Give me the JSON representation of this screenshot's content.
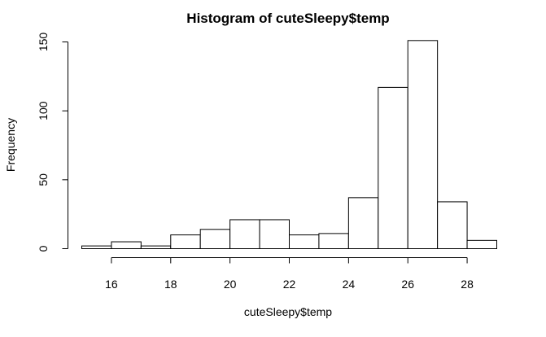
{
  "chart_data": {
    "type": "bar",
    "title": "Histogram of cuteSleepy$temp",
    "xlabel": "cuteSleepy$temp",
    "ylabel": "Frequency",
    "bin_edges": [
      15,
      16,
      17,
      18,
      19,
      20,
      21,
      22,
      23,
      24,
      25,
      26,
      27,
      28,
      29
    ],
    "values": [
      2,
      5,
      2,
      10,
      14,
      21,
      21,
      10,
      11,
      37,
      117,
      151,
      34,
      6
    ],
    "xlim": [
      15,
      29
    ],
    "ylim": [
      0,
      150
    ],
    "x_ticks": [
      16,
      18,
      20,
      22,
      24,
      26,
      28
    ],
    "y_ticks": [
      0,
      50,
      100,
      150
    ],
    "bar_fill": "#ffffff",
    "bar_stroke": "#000000",
    "grid": false,
    "legend": "none"
  }
}
